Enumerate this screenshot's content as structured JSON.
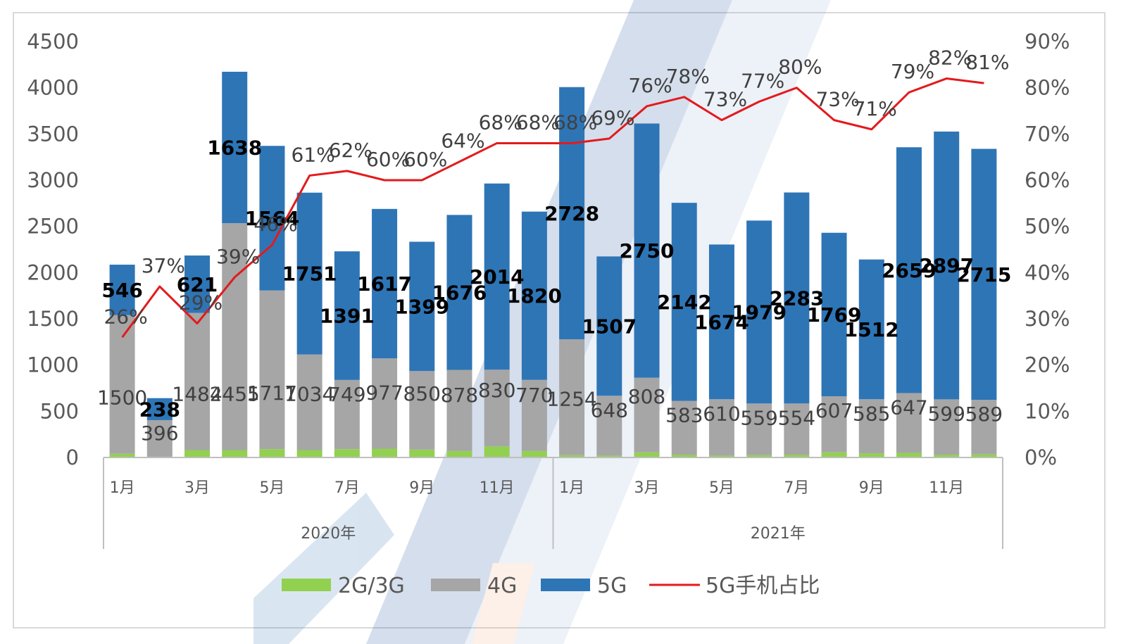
{
  "chart_data": {
    "type": "bar",
    "stacked": true,
    "groups": [
      {
        "label": "2020年",
        "categories": [
          "1月",
          "",
          "3月",
          "",
          "5月",
          "",
          "7月",
          "",
          "9月",
          "",
          "11月",
          ""
        ]
      },
      {
        "label": "2021年",
        "categories": [
          "1月",
          "",
          "3月",
          "",
          "5月",
          "",
          "7月",
          "",
          "9月",
          "",
          "11月",
          ""
        ]
      }
    ],
    "series": [
      {
        "name": "2G/3G",
        "color": "#92d050",
        "values": [
          40,
          8,
          80,
          80,
          90,
          80,
          90,
          95,
          85,
          70,
          120,
          70,
          25,
          20,
          55,
          30,
          20,
          25,
          30,
          55,
          45,
          50,
          30,
          35
        ]
      },
      {
        "name": "4G",
        "color": "#a6a6a6",
        "values": [
          1500,
          396,
          1484,
          2455,
          1717,
          1034,
          749,
          977,
          850,
          878,
          830,
          770,
          1254,
          648,
          808,
          583,
          610,
          559,
          554,
          607,
          585,
          647,
          599,
          589
        ]
      },
      {
        "name": "5G",
        "color": "#2e75b6",
        "values": [
          546,
          238,
          621,
          1638,
          1564,
          1751,
          1391,
          1617,
          1399,
          1676,
          2014,
          1820,
          2728,
          1507,
          2750,
          2142,
          1674,
          1979,
          2283,
          1769,
          1512,
          2659,
          2897,
          2715
        ]
      }
    ],
    "line": {
      "name": "5G手机占比",
      "color": "#e31a1c",
      "values": [
        26,
        37,
        29,
        39,
        46,
        61,
        62,
        60,
        60,
        64,
        68,
        68,
        68,
        69,
        76,
        78,
        73,
        77,
        80,
        73,
        71,
        79,
        82,
        81
      ]
    },
    "y_left": {
      "min": 0,
      "max": 4500,
      "step": 500,
      "ticks": [
        "0",
        "500",
        "1000",
        "1500",
        "2000",
        "2500",
        "3000",
        "3500",
        "4000",
        "4500"
      ]
    },
    "y_right": {
      "min": 0,
      "max": 90,
      "step": 10,
      "ticks": [
        "0%",
        "10%",
        "20%",
        "30%",
        "40%",
        "50%",
        "60%",
        "70%",
        "80%",
        "90%"
      ]
    },
    "labels_4g": [
      "1500",
      "396",
      "1484",
      "2455",
      "1717",
      "1034",
      "749",
      "977",
      "850",
      "878",
      "830",
      "770",
      "1254",
      "648",
      "808",
      "583",
      "610",
      "559",
      "554",
      "607",
      "585",
      "647",
      "599",
      "589"
    ],
    "labels_5g": [
      "546",
      "238",
      "621",
      "1638",
      "1564",
      "1751",
      "1391",
      "1617",
      "1399",
      "1676",
      "2014",
      "1820",
      "2728",
      "1507",
      "2750",
      "2142",
      "1674",
      "1979",
      "2283",
      "1769",
      "1512",
      "2659",
      "2897",
      "2715"
    ],
    "labels_pct": [
      "26%",
      "37%",
      "29%",
      "39%",
      "46%",
      "61%",
      "62%",
      "60%",
      "60%",
      "64%",
      "68%",
      "68%",
      "68%",
      "69%",
      "76%",
      "78%",
      "73%",
      "77%",
      "80%",
      "73%",
      "71%",
      "79%",
      "82%",
      "81%"
    ],
    "legend": {
      "position": "bottom",
      "items": [
        "2G/3G",
        "4G",
        "5G",
        "5G手机占比"
      ]
    },
    "grid": false
  }
}
